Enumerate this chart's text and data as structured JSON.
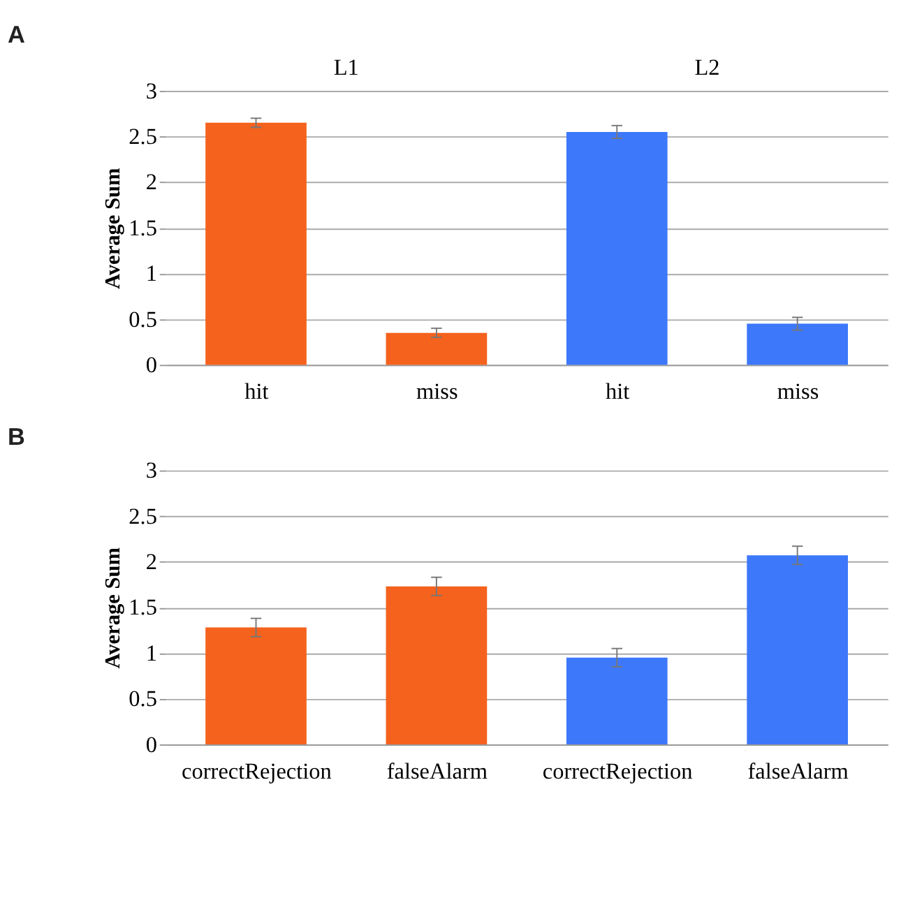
{
  "chart_data": [
    {
      "type": "bar",
      "title": "A",
      "ylabel": "Average Sum",
      "categories": [
        "hit",
        "miss",
        "hit",
        "miss"
      ],
      "values": [
        2.65,
        0.35,
        2.55,
        0.45
      ],
      "errors": [
        0.05,
        0.05,
        0.07,
        0.07
      ],
      "colors": [
        "#f4621d",
        "#f4621d",
        "#3d78fb",
        "#3d78fb"
      ],
      "ylim": [
        0,
        3
      ],
      "yticks": [
        0,
        0.5,
        1,
        1.5,
        2,
        2.5,
        3
      ],
      "grid": "y",
      "annotations": [
        "L1",
        "L2"
      ]
    },
    {
      "type": "bar",
      "title": "B",
      "ylabel": "Average Sum",
      "categories": [
        "correctRejection",
        "falseAlarm",
        "correctRejection",
        "falseAlarm"
      ],
      "values": [
        1.28,
        1.73,
        0.95,
        2.07
      ],
      "errors": [
        0.1,
        0.1,
        0.1,
        0.1
      ],
      "colors": [
        "#f4621d",
        "#f4621d",
        "#3d78fb",
        "#3d78fb"
      ],
      "ylim": [
        0,
        3
      ],
      "yticks": [
        0,
        0.5,
        1,
        1.5,
        2,
        2.5,
        3
      ],
      "grid": "y"
    }
  ]
}
